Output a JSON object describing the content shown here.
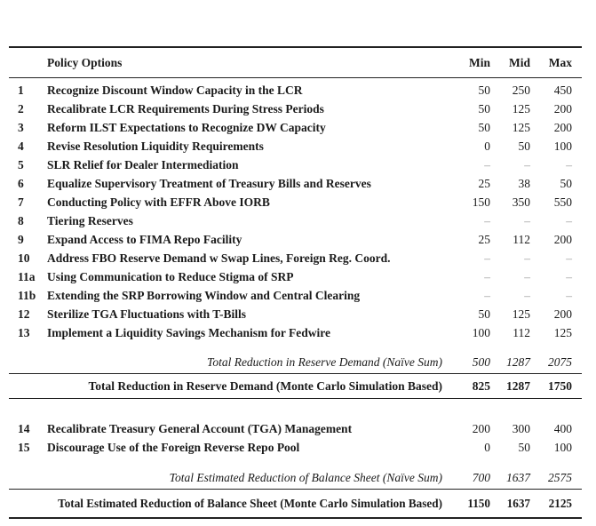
{
  "table": {
    "header": {
      "policy": "Policy Options",
      "min": "Min",
      "mid": "Mid",
      "max": "Max"
    },
    "rows_section1": [
      {
        "num": "1",
        "label": "Recognize Discount Window Capacity in the LCR",
        "min": "50",
        "mid": "250",
        "max": "450",
        "empty": false
      },
      {
        "num": "2",
        "label": "Recalibrate LCR Requirements During Stress Periods",
        "min": "50",
        "mid": "125",
        "max": "200",
        "empty": false
      },
      {
        "num": "3",
        "label": "Reform ILST Expectations to Recognize DW Capacity",
        "min": "50",
        "mid": "125",
        "max": "200",
        "empty": false
      },
      {
        "num": "4",
        "label": "Revise Resolution Liquidity Requirements",
        "min": "0",
        "mid": "50",
        "max": "100",
        "empty": false
      },
      {
        "num": "5",
        "label": "SLR Relief for Dealer Intermediation",
        "min": "–",
        "mid": "–",
        "max": "–",
        "empty": true
      },
      {
        "num": "6",
        "label": "Equalize Supervisory Treatment of Treasury Bills and Reserves",
        "min": "25",
        "mid": "38",
        "max": "50",
        "empty": false
      },
      {
        "num": "7",
        "label": "Conducting Policy with EFFR Above IORB",
        "min": "150",
        "mid": "350",
        "max": "550",
        "empty": false
      },
      {
        "num": "8",
        "label": "Tiering Reserves",
        "min": "–",
        "mid": "–",
        "max": "–",
        "empty": true
      },
      {
        "num": "9",
        "label": "Expand Access to FIMA Repo Facility",
        "min": "25",
        "mid": "112",
        "max": "200",
        "empty": false
      },
      {
        "num": "10",
        "label": "Address FBO Reserve Demand w Swap Lines, Foreign Reg. Coord.",
        "min": "–",
        "mid": "–",
        "max": "–",
        "empty": true
      },
      {
        "num": "11a",
        "label": "Using Communication to Reduce Stigma of SRP",
        "min": "–",
        "mid": "–",
        "max": "–",
        "empty": true
      },
      {
        "num": "11b",
        "label": "Extending the SRP Borrowing Window and Central Clearing",
        "min": "–",
        "mid": "–",
        "max": "–",
        "empty": true
      },
      {
        "num": "12",
        "label": "Sterilize TGA Fluctuations with T-Bills",
        "min": "50",
        "mid": "125",
        "max": "200",
        "empty": false
      },
      {
        "num": "13",
        "label": "Implement a Liquidity Savings Mechanism for Fedwire",
        "min": "100",
        "mid": "112",
        "max": "125",
        "empty": false
      }
    ],
    "summary1_naive": {
      "label": "Total Reduction in Reserve Demand (Naïve Sum)",
      "min": "500",
      "mid": "1287",
      "max": "2075"
    },
    "summary1_mc": {
      "label": "Total Reduction in Reserve Demand (Monte Carlo Simulation Based)",
      "min": "825",
      "mid": "1287",
      "max": "1750"
    },
    "rows_section2": [
      {
        "num": "14",
        "label": "Recalibrate Treasury General Account (TGA) Management",
        "min": "200",
        "mid": "300",
        "max": "400",
        "empty": false
      },
      {
        "num": "15",
        "label": "Discourage Use of the Foreign Reverse Repo Pool",
        "min": "0",
        "mid": "50",
        "max": "100",
        "empty": false
      }
    ],
    "summary2_naive": {
      "label": "Total Estimated Reduction of Balance Sheet (Naïve Sum)",
      "min": "700",
      "mid": "1637",
      "max": "2575"
    },
    "summary2_mc": {
      "label": "Total Estimated Reduction of Balance Sheet (Monte Carlo Simulation Based)",
      "min": "1150",
      "mid": "1637",
      "max": "2125"
    },
    "colors": {
      "text": "#1a1a1a",
      "rule": "#222222",
      "empty_dash": "#9c9c9c"
    }
  }
}
